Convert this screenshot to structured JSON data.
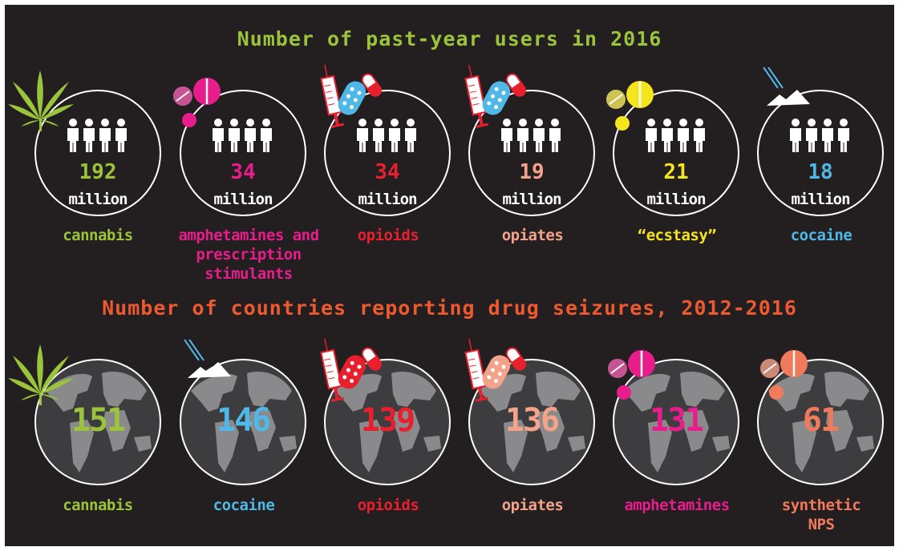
{
  "title_users": "Number of past-year users in 2016",
  "title_seizures": "Number of countries reporting drug seizures, 2012-2016",
  "colors": {
    "title_users": "#9ac43a",
    "title_seizures": "#ee5a2f",
    "cannabis": "#9ac43a",
    "amphetamines": "#e81d8c",
    "opioids": "#e8202e",
    "opiates": "#f4a28a",
    "ecstasy": "#f5e51e",
    "cocaine": "#4fb8e6",
    "nps": "#f07a5a"
  },
  "users": [
    {
      "value": "192",
      "unit": "million",
      "label": "cannabis",
      "color": "#9ac43a",
      "icon": "cannabis-leaf-icon"
    },
    {
      "value": "34",
      "unit": "million",
      "label": "amphetamines and prescription stimulants",
      "color": "#e81d8c",
      "icon": "pills-icon"
    },
    {
      "value": "34",
      "unit": "million",
      "label": "opioids",
      "color": "#e8202e",
      "icon": "syringe-pills-icon"
    },
    {
      "value": "19",
      "unit": "million",
      "label": "opiates",
      "color": "#f4a28a",
      "icon": "syringe-pills-icon"
    },
    {
      "value": "21",
      "unit": "million",
      "label": "“ecstasy”",
      "color": "#f5e51e",
      "icon": "pills-icon"
    },
    {
      "value": "18",
      "unit": "million",
      "label": "cocaine",
      "color": "#4fb8e6",
      "icon": "cocaine-icon"
    }
  ],
  "seizures": [
    {
      "value": "151",
      "label": "cannabis",
      "color": "#9ac43a",
      "icon": "cannabis-leaf-icon"
    },
    {
      "value": "146",
      "label": "cocaine",
      "color": "#4fb8e6",
      "icon": "cocaine-icon"
    },
    {
      "value": "139",
      "label": "opioids",
      "color": "#e8202e",
      "icon": "syringe-pills-icon"
    },
    {
      "value": "136",
      "label": "opiates",
      "color": "#f4a28a",
      "icon": "syringe-pills-icon"
    },
    {
      "value": "131",
      "label": "amphetamines",
      "color": "#e81d8c",
      "icon": "pills-icon"
    },
    {
      "value": "61",
      "label": "synthetic NPS",
      "color": "#f07a5a",
      "icon": "pills-icon"
    }
  ]
}
